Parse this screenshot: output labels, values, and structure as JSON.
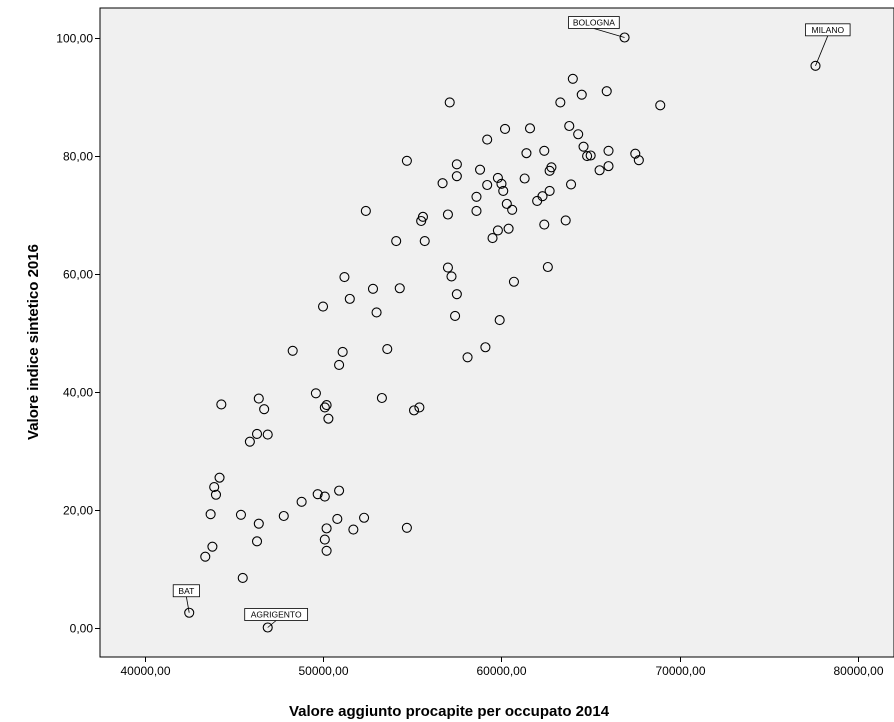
{
  "chart_data": {
    "type": "scatter",
    "xlabel": "Valore aggiunto procapite per occupato 2014",
    "ylabel": "Valore indice sintetico 2016",
    "xlim": [
      37500,
      82000
    ],
    "ylim": [
      -5,
      105
    ],
    "x_ticks": [
      40000,
      50000,
      60000,
      70000,
      80000
    ],
    "x_tick_labels": [
      "40000,00",
      "50000,00",
      "60000,00",
      "70000,00",
      "80000,00"
    ],
    "y_ticks": [
      0,
      20,
      40,
      60,
      80,
      100
    ],
    "y_tick_labels": [
      "0,00",
      "20,00",
      "40,00",
      "60,00",
      "80,00",
      "100,00"
    ],
    "grid": false,
    "colors": {
      "plot_background": "#f0f0f0",
      "marker": "#000000"
    },
    "points": [
      {
        "x": 77600,
        "y": 95.2,
        "label": "MILANO"
      },
      {
        "x": 66900,
        "y": 100.0,
        "label": "BOLOGNA"
      },
      {
        "x": 42500,
        "y": 2.5,
        "label": "BAT"
      },
      {
        "x": 46900,
        "y": 0.0,
        "label": "AGRIGENTO"
      },
      {
        "x": 57100,
        "y": 89.0
      },
      {
        "x": 64000,
        "y": 93.0
      },
      {
        "x": 64500,
        "y": 90.3
      },
      {
        "x": 65900,
        "y": 90.9
      },
      {
        "x": 68900,
        "y": 88.5
      },
      {
        "x": 63300,
        "y": 89.0
      },
      {
        "x": 60200,
        "y": 84.5
      },
      {
        "x": 61600,
        "y": 84.6
      },
      {
        "x": 59200,
        "y": 82.7
      },
      {
        "x": 63800,
        "y": 85.0
      },
      {
        "x": 64300,
        "y": 83.6
      },
      {
        "x": 64600,
        "y": 81.5
      },
      {
        "x": 62400,
        "y": 80.8
      },
      {
        "x": 61400,
        "y": 80.4
      },
      {
        "x": 64800,
        "y": 79.9
      },
      {
        "x": 65000,
        "y": 80.0
      },
      {
        "x": 66000,
        "y": 80.8
      },
      {
        "x": 67500,
        "y": 80.3
      },
      {
        "x": 67700,
        "y": 79.2
      },
      {
        "x": 65500,
        "y": 77.5
      },
      {
        "x": 66000,
        "y": 78.2
      },
      {
        "x": 62700,
        "y": 77.4
      },
      {
        "x": 62800,
        "y": 78.0
      },
      {
        "x": 54700,
        "y": 79.1
      },
      {
        "x": 57500,
        "y": 78.5
      },
      {
        "x": 57500,
        "y": 76.5
      },
      {
        "x": 56700,
        "y": 75.3
      },
      {
        "x": 58800,
        "y": 77.6
      },
      {
        "x": 59200,
        "y": 75.0
      },
      {
        "x": 59800,
        "y": 76.2
      },
      {
        "x": 60000,
        "y": 75.2
      },
      {
        "x": 61300,
        "y": 76.1
      },
      {
        "x": 63900,
        "y": 75.1
      },
      {
        "x": 60100,
        "y": 74.0
      },
      {
        "x": 58600,
        "y": 73.0
      },
      {
        "x": 60300,
        "y": 71.8
      },
      {
        "x": 62000,
        "y": 72.3
      },
      {
        "x": 62300,
        "y": 73.1
      },
      {
        "x": 62700,
        "y": 74.0
      },
      {
        "x": 60600,
        "y": 70.8
      },
      {
        "x": 58600,
        "y": 70.6
      },
      {
        "x": 57000,
        "y": 70.0
      },
      {
        "x": 52400,
        "y": 70.6
      },
      {
        "x": 55600,
        "y": 69.6
      },
      {
        "x": 55500,
        "y": 68.9
      },
      {
        "x": 59800,
        "y": 67.3
      },
      {
        "x": 60400,
        "y": 67.6
      },
      {
        "x": 62400,
        "y": 68.3
      },
      {
        "x": 63600,
        "y": 69.0
      },
      {
        "x": 59500,
        "y": 66.0
      },
      {
        "x": 55700,
        "y": 65.5
      },
      {
        "x": 54100,
        "y": 65.5
      },
      {
        "x": 57000,
        "y": 61.0
      },
      {
        "x": 57200,
        "y": 59.5
      },
      {
        "x": 62600,
        "y": 61.1
      },
      {
        "x": 60700,
        "y": 58.6
      },
      {
        "x": 51200,
        "y": 59.4
      },
      {
        "x": 52800,
        "y": 57.4
      },
      {
        "x": 54300,
        "y": 57.5
      },
      {
        "x": 57500,
        "y": 56.5
      },
      {
        "x": 51500,
        "y": 55.7
      },
      {
        "x": 50000,
        "y": 54.4
      },
      {
        "x": 53000,
        "y": 53.4
      },
      {
        "x": 57400,
        "y": 52.8
      },
      {
        "x": 59900,
        "y": 52.1
      },
      {
        "x": 51100,
        "y": 46.7
      },
      {
        "x": 53600,
        "y": 47.2
      },
      {
        "x": 48300,
        "y": 46.9
      },
      {
        "x": 59100,
        "y": 47.5
      },
      {
        "x": 58100,
        "y": 45.8
      },
      {
        "x": 50900,
        "y": 44.5
      },
      {
        "x": 49600,
        "y": 39.7
      },
      {
        "x": 53300,
        "y": 38.9
      },
      {
        "x": 50200,
        "y": 37.7
      },
      {
        "x": 50100,
        "y": 37.3
      },
      {
        "x": 55400,
        "y": 37.3
      },
      {
        "x": 55100,
        "y": 36.8
      },
      {
        "x": 50300,
        "y": 35.4
      },
      {
        "x": 44300,
        "y": 37.8
      },
      {
        "x": 46400,
        "y": 38.8
      },
      {
        "x": 46700,
        "y": 37.0
      },
      {
        "x": 46300,
        "y": 32.8
      },
      {
        "x": 46900,
        "y": 32.7
      },
      {
        "x": 45900,
        "y": 31.5
      },
      {
        "x": 44200,
        "y": 25.4
      },
      {
        "x": 43900,
        "y": 23.8
      },
      {
        "x": 44000,
        "y": 22.5
      },
      {
        "x": 49700,
        "y": 22.6
      },
      {
        "x": 50100,
        "y": 22.2
      },
      {
        "x": 50900,
        "y": 23.2
      },
      {
        "x": 48800,
        "y": 21.3
      },
      {
        "x": 43700,
        "y": 19.2
      },
      {
        "x": 45400,
        "y": 19.1
      },
      {
        "x": 47800,
        "y": 18.9
      },
      {
        "x": 46400,
        "y": 17.6
      },
      {
        "x": 50800,
        "y": 18.4
      },
      {
        "x": 52300,
        "y": 18.6
      },
      {
        "x": 50200,
        "y": 16.8
      },
      {
        "x": 51700,
        "y": 16.6
      },
      {
        "x": 54700,
        "y": 16.9
      },
      {
        "x": 50100,
        "y": 14.9
      },
      {
        "x": 46300,
        "y": 14.6
      },
      {
        "x": 50200,
        "y": 13.0
      },
      {
        "x": 43800,
        "y": 13.7
      },
      {
        "x": 43400,
        "y": 12.0
      },
      {
        "x": 45500,
        "y": 8.4
      }
    ]
  }
}
